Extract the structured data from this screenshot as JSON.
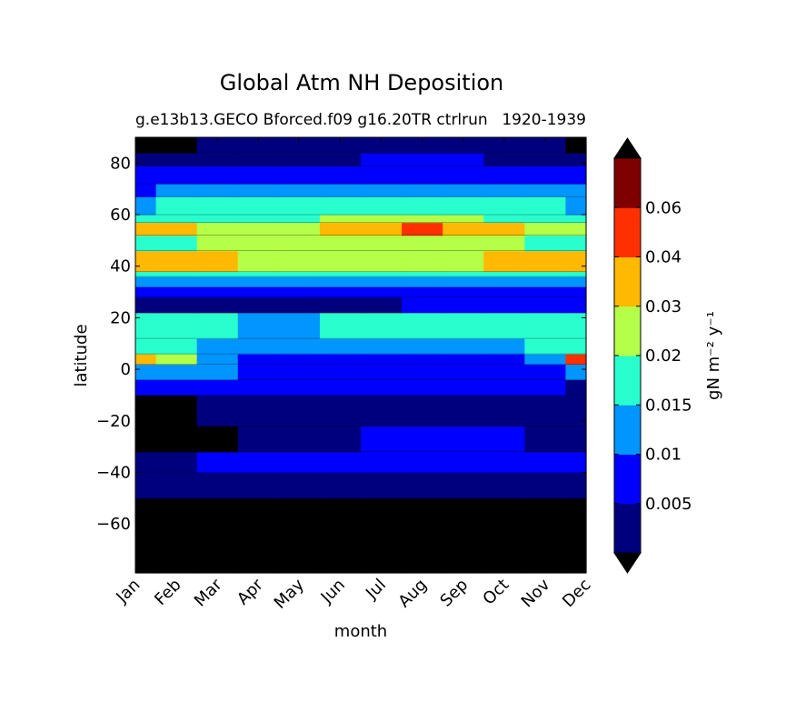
{
  "chart_data": {
    "type": "filled-contour",
    "title": "Global Atm NH Deposition",
    "subtitle_left": "g.e13b13.GECO Bforced.f09 g16.20TR ctrlrun",
    "subtitle_right": "1920-1939",
    "xlabel": "month",
    "ylabel": "latitude",
    "x_categories": [
      "Jan",
      "Feb",
      "Mar",
      "Apr",
      "May",
      "Jun",
      "Jul",
      "Aug",
      "Sep",
      "Oct",
      "Nov",
      "Dec"
    ],
    "x_range": [
      0,
      11
    ],
    "y_range": [
      -79,
      90
    ],
    "y_ticks": [
      80,
      60,
      40,
      20,
      0,
      -20,
      -40,
      -60
    ],
    "y_tick_labels": [
      "80",
      "60",
      "40",
      "20",
      "0",
      "−20",
      "−40",
      "−60"
    ],
    "colorbar": {
      "label": "gN m⁻² y⁻¹",
      "extend": "both",
      "levels": [
        0,
        0.001,
        0.005,
        0.01,
        0.015,
        0.02,
        0.03,
        0.04,
        0.06,
        0.1
      ],
      "tick_labels": [
        "0.005",
        "0.01",
        "0.015",
        "0.02",
        "0.03",
        "0.04",
        "0.06"
      ],
      "colors": [
        "#000000",
        "#00007f",
        "#0000ff",
        "#0095ff",
        "#29ffce",
        "#b4ff47",
        "#ffb900",
        "#ff3000",
        "#7f0000",
        "#000000"
      ]
    },
    "profiles": [
      {
        "lat_lo": -79,
        "lat_hi": -50,
        "values": [
          0.0005,
          0.0005,
          0.0005,
          0.0005,
          0.0005,
          0.0005,
          0.0005,
          0.0005,
          0.0005,
          0.0005,
          0.0005,
          0.0005
        ]
      },
      {
        "lat_lo": -50,
        "lat_hi": -40,
        "values": [
          0.003,
          0.003,
          0.003,
          0.003,
          0.003,
          0.003,
          0.003,
          0.003,
          0.003,
          0.003,
          0.003,
          0.003
        ]
      },
      {
        "lat_lo": -40,
        "lat_hi": -32,
        "values": [
          0.003,
          0.003,
          0.006,
          0.006,
          0.006,
          0.006,
          0.006,
          0.007,
          0.007,
          0.006,
          0.006,
          0.006
        ]
      },
      {
        "lat_lo": -32,
        "lat_hi": -22,
        "values": [
          0.0005,
          0.0005,
          0.0005,
          0.003,
          0.003,
          0.003,
          0.006,
          0.006,
          0.006,
          0.006,
          0.003,
          0.003
        ]
      },
      {
        "lat_lo": -22,
        "lat_hi": -10,
        "values": [
          0.0005,
          0.0005,
          0.003,
          0.003,
          0.003,
          0.003,
          0.003,
          0.003,
          0.003,
          0.003,
          0.003,
          0.003
        ]
      },
      {
        "lat_lo": -10,
        "lat_hi": -4,
        "values": [
          0.007,
          0.007,
          0.006,
          0.006,
          0.006,
          0.006,
          0.006,
          0.006,
          0.006,
          0.006,
          0.006,
          0.003
        ]
      },
      {
        "lat_lo": -4,
        "lat_hi": 2,
        "values": [
          0.012,
          0.012,
          0.012,
          0.007,
          0.007,
          0.007,
          0.007,
          0.007,
          0.007,
          0.007,
          0.007,
          0.012
        ]
      },
      {
        "lat_lo": 2,
        "lat_hi": 6,
        "values": [
          0.03,
          0.02,
          0.012,
          0.007,
          0.007,
          0.007,
          0.007,
          0.007,
          0.007,
          0.007,
          0.012,
          0.045
        ]
      },
      {
        "lat_lo": 6,
        "lat_hi": 12,
        "values": [
          0.017,
          0.017,
          0.012,
          0.012,
          0.012,
          0.012,
          0.012,
          0.012,
          0.012,
          0.012,
          0.017,
          0.017
        ]
      },
      {
        "lat_lo": 12,
        "lat_hi": 22,
        "values": [
          0.017,
          0.017,
          0.017,
          0.012,
          0.012,
          0.017,
          0.017,
          0.017,
          0.017,
          0.017,
          0.017,
          0.017
        ]
      },
      {
        "lat_lo": 22,
        "lat_hi": 28,
        "values": [
          0.003,
          0.003,
          0.003,
          0.003,
          0.003,
          0.003,
          0.003,
          0.006,
          0.006,
          0.006,
          0.006,
          0.006
        ]
      },
      {
        "lat_lo": 28,
        "lat_hi": 32,
        "values": [
          0.006,
          0.006,
          0.006,
          0.006,
          0.006,
          0.006,
          0.006,
          0.006,
          0.006,
          0.006,
          0.006,
          0.006
        ]
      },
      {
        "lat_lo": 32,
        "lat_hi": 36,
        "values": [
          0.012,
          0.012,
          0.012,
          0.012,
          0.012,
          0.012,
          0.012,
          0.012,
          0.012,
          0.012,
          0.012,
          0.012
        ]
      },
      {
        "lat_lo": 36,
        "lat_hi": 38,
        "values": [
          0.017,
          0.017,
          0.017,
          0.017,
          0.017,
          0.017,
          0.017,
          0.017,
          0.017,
          0.017,
          0.017,
          0.017
        ]
      },
      {
        "lat_lo": 38,
        "lat_hi": 46,
        "values": [
          0.035,
          0.035,
          0.035,
          0.025,
          0.025,
          0.025,
          0.025,
          0.025,
          0.025,
          0.035,
          0.035,
          0.035
        ]
      },
      {
        "lat_lo": 46,
        "lat_hi": 52,
        "values": [
          0.017,
          0.017,
          0.025,
          0.025,
          0.025,
          0.025,
          0.025,
          0.025,
          0.025,
          0.025,
          0.017,
          0.017
        ]
      },
      {
        "lat_lo": 52,
        "lat_hi": 57,
        "values": [
          0.035,
          0.035,
          0.025,
          0.025,
          0.025,
          0.035,
          0.035,
          0.045,
          0.035,
          0.035,
          0.025,
          0.025
        ]
      },
      {
        "lat_lo": 57,
        "lat_hi": 60,
        "values": [
          0.017,
          0.017,
          0.017,
          0.017,
          0.017,
          0.025,
          0.025,
          0.025,
          0.025,
          0.017,
          0.017,
          0.017
        ]
      },
      {
        "lat_lo": 60,
        "lat_hi": 67,
        "values": [
          0.012,
          0.017,
          0.017,
          0.017,
          0.017,
          0.017,
          0.017,
          0.017,
          0.017,
          0.017,
          0.017,
          0.012
        ]
      },
      {
        "lat_lo": 67,
        "lat_hi": 72,
        "values": [
          0.006,
          0.012,
          0.012,
          0.012,
          0.012,
          0.012,
          0.012,
          0.012,
          0.012,
          0.012,
          0.012,
          0.012
        ]
      },
      {
        "lat_lo": 72,
        "lat_hi": 79,
        "values": [
          0.006,
          0.006,
          0.006,
          0.006,
          0.006,
          0.006,
          0.006,
          0.006,
          0.006,
          0.006,
          0.006,
          0.006
        ]
      },
      {
        "lat_lo": 79,
        "lat_hi": 84,
        "values": [
          0.003,
          0.003,
          0.003,
          0.003,
          0.003,
          0.003,
          0.006,
          0.006,
          0.006,
          0.003,
          0.003,
          0.003
        ]
      },
      {
        "lat_lo": 84,
        "lat_hi": 90,
        "values": [
          0.0005,
          0.0005,
          0.003,
          0.003,
          0.003,
          0.003,
          0.003,
          0.003,
          0.003,
          0.003,
          0.003,
          0.0005
        ]
      }
    ]
  }
}
